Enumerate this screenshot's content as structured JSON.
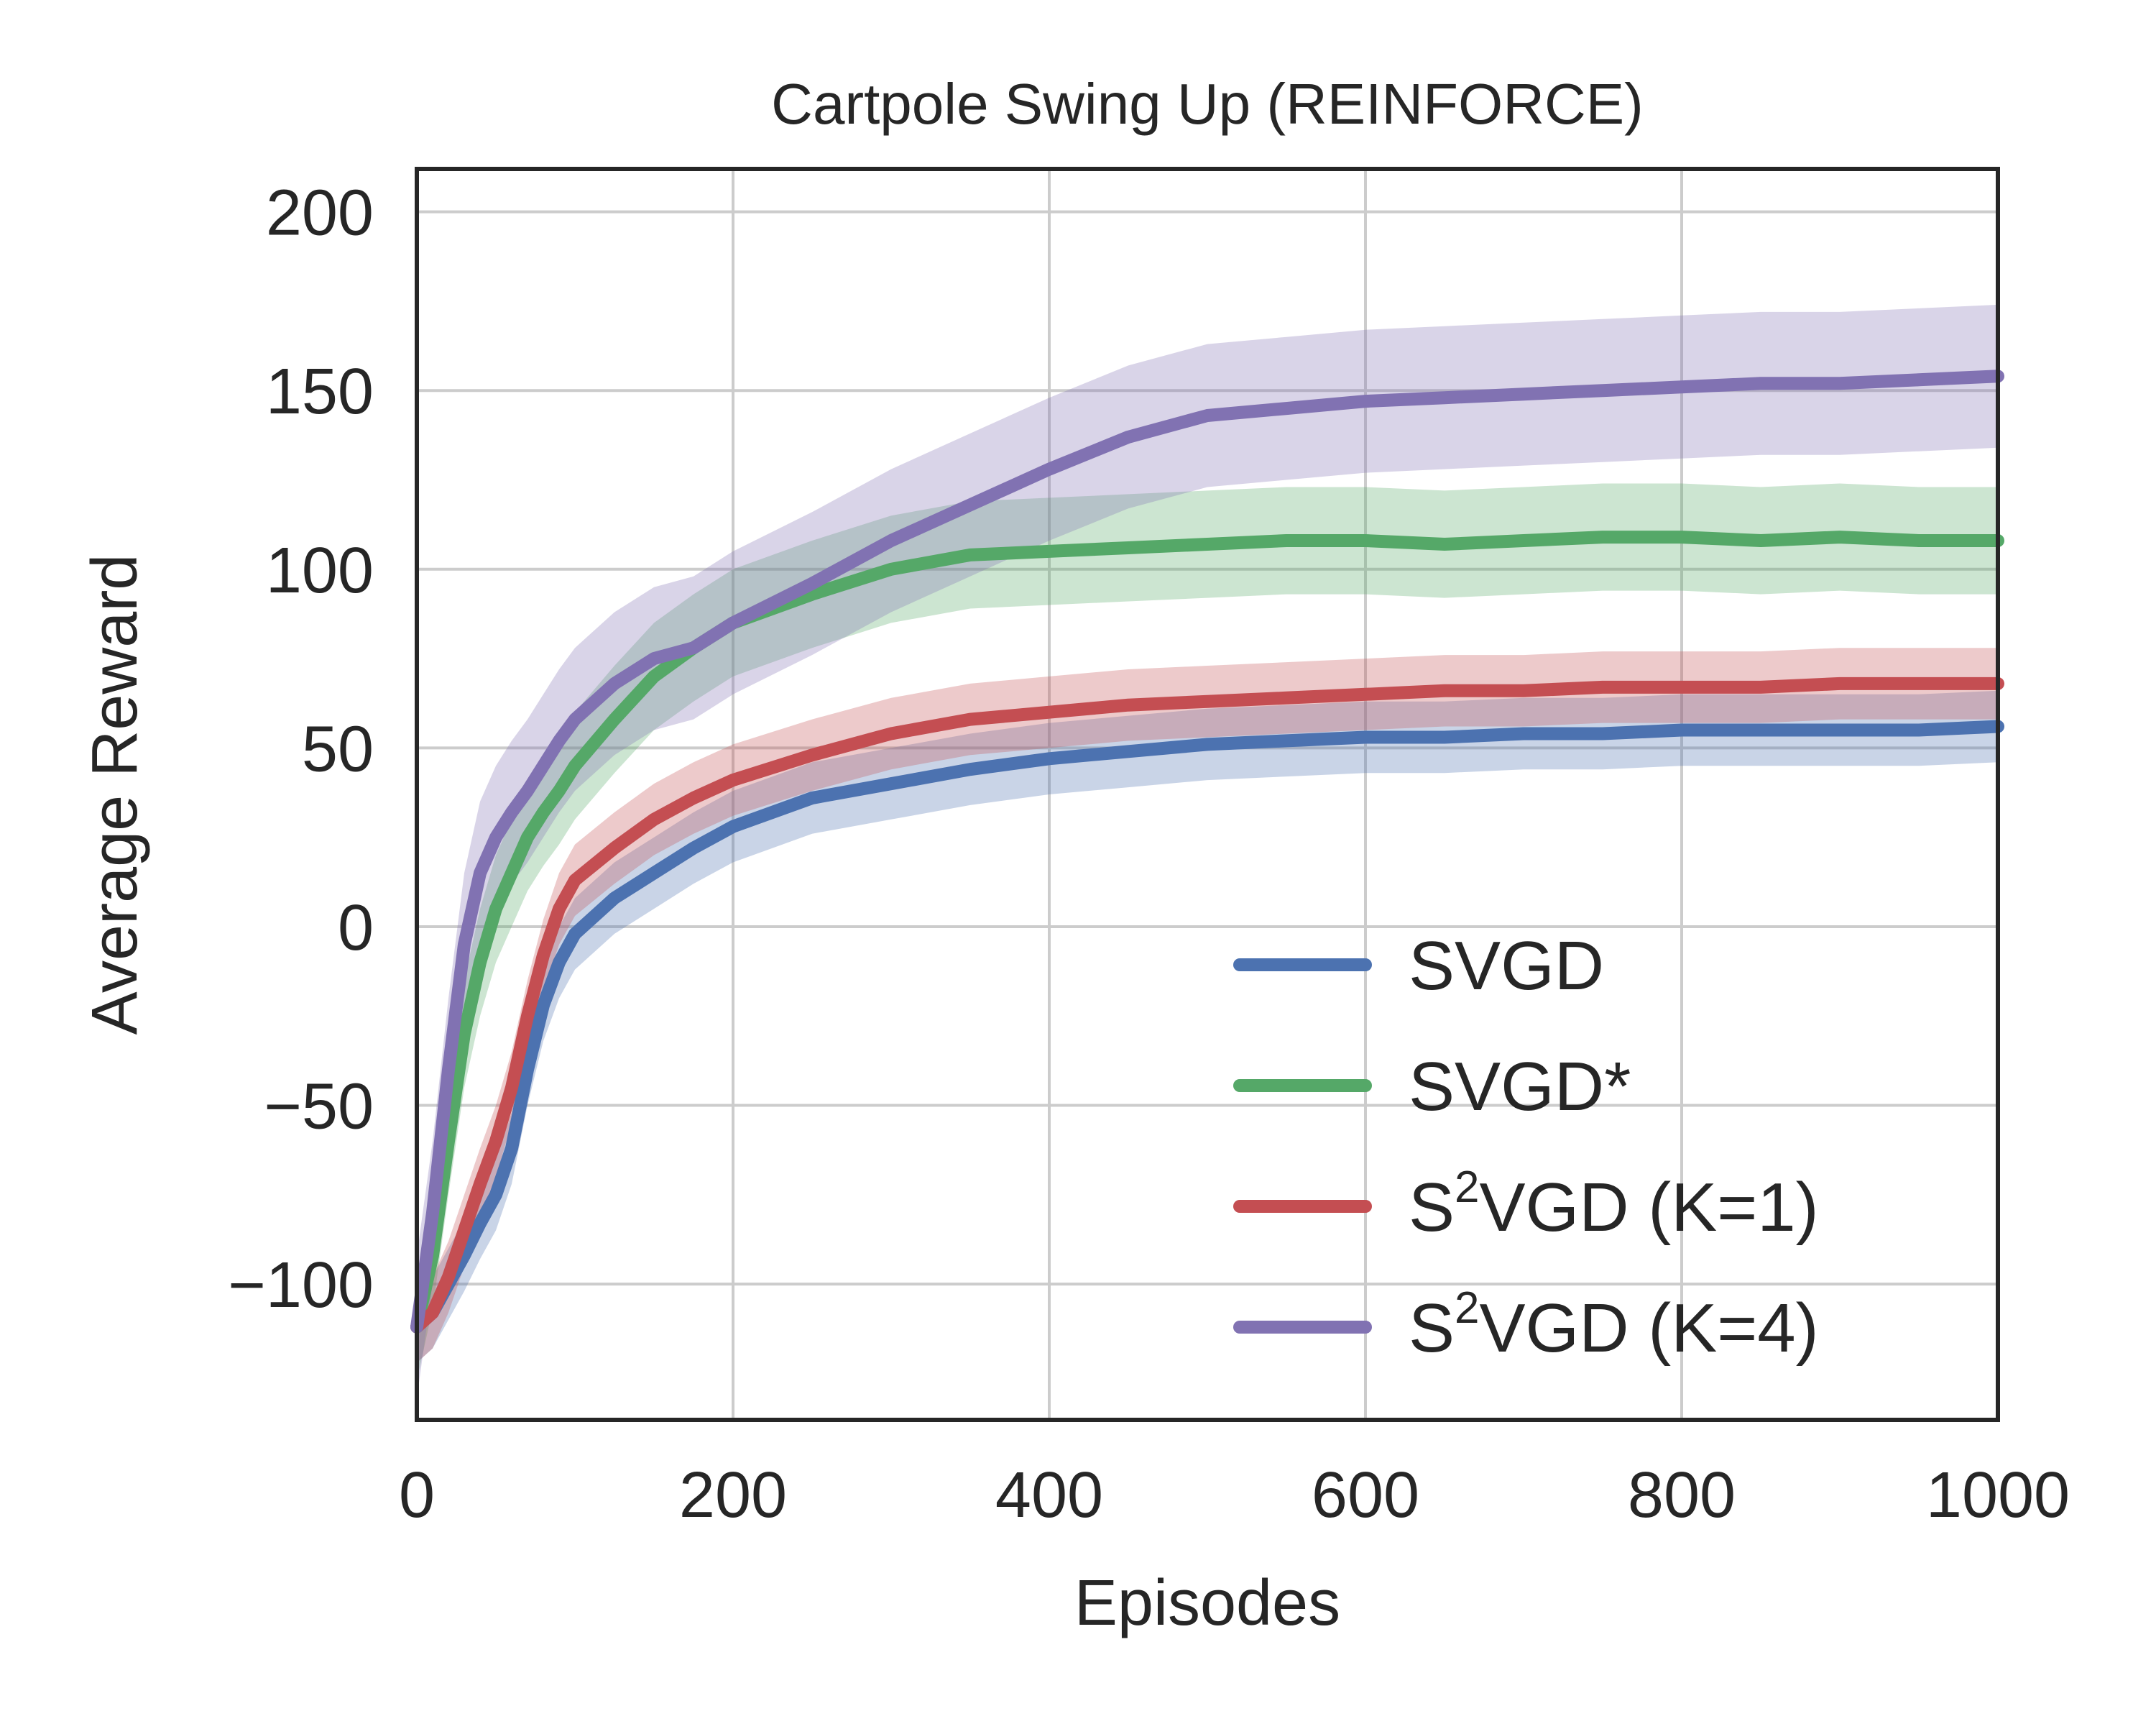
{
  "chart_data": {
    "type": "line",
    "title": "Cartpole Swing Up (REINFORCE)",
    "xlabel": "Episodes",
    "ylabel": "Average Reward",
    "xlim": [
      0,
      1000
    ],
    "ylim": [
      -138,
      212
    ],
    "xticks": [
      0,
      200,
      400,
      600,
      800,
      1000
    ],
    "yticks": [
      -100,
      -50,
      0,
      50,
      100,
      150,
      200
    ],
    "xtick_labels": [
      "0",
      "200",
      "400",
      "600",
      "800",
      "1000"
    ],
    "ytick_labels": [
      "−100",
      "−50",
      "0",
      "50",
      "100",
      "150",
      "200"
    ],
    "grid": true,
    "legend_position": "bottom-right",
    "x": [
      0,
      10,
      20,
      30,
      40,
      50,
      60,
      70,
      80,
      90,
      100,
      125,
      150,
      175,
      200,
      250,
      300,
      350,
      400,
      450,
      500,
      550,
      600,
      650,
      700,
      750,
      800,
      850,
      900,
      950,
      1000
    ],
    "series": [
      {
        "name": "SVGD",
        "name_main": "SVGD",
        "name_sup": "",
        "name_rest": "",
        "color": "#4c72b0",
        "band": 10,
        "values": [
          -112,
          -108,
          -100,
          -92,
          -83,
          -75,
          -62,
          -40,
          -22,
          -10,
          -2,
          8,
          15,
          22,
          28,
          36,
          40,
          44,
          47,
          49,
          51,
          52,
          53,
          53,
          54,
          54,
          55,
          55,
          55,
          55,
          56
        ]
      },
      {
        "name": "SVGD*",
        "name_main": "SVGD*",
        "name_sup": "",
        "name_rest": "",
        "color": "#55a868",
        "band": 15,
        "values": [
          -112,
          -92,
          -60,
          -30,
          -10,
          5,
          15,
          25,
          32,
          38,
          45,
          58,
          70,
          78,
          85,
          93,
          100,
          104,
          105,
          106,
          107,
          108,
          108,
          107,
          108,
          109,
          109,
          108,
          109,
          108,
          108
        ]
      },
      {
        "name": "S2VGD (K=1)",
        "name_main": "S",
        "name_sup": "2",
        "name_rest": "VGD (K=1)",
        "color": "#c44e52",
        "band": 10,
        "values": [
          -112,
          -108,
          -98,
          -85,
          -72,
          -60,
          -45,
          -25,
          -8,
          5,
          13,
          22,
          30,
          36,
          41,
          48,
          54,
          58,
          60,
          62,
          63,
          64,
          65,
          66,
          66,
          67,
          67,
          67,
          68,
          68,
          68
        ]
      },
      {
        "name": "S2VGD (K=4)",
        "name_main": "S",
        "name_sup": "2",
        "name_rest": "VGD (K=4)",
        "color": "#8172b2",
        "band": 20,
        "values": [
          -112,
          -80,
          -40,
          -5,
          15,
          25,
          32,
          38,
          45,
          52,
          58,
          68,
          75,
          78,
          85,
          96,
          108,
          118,
          128,
          137,
          143,
          145,
          147,
          148,
          149,
          150,
          151,
          152,
          152,
          153,
          154
        ]
      }
    ]
  }
}
